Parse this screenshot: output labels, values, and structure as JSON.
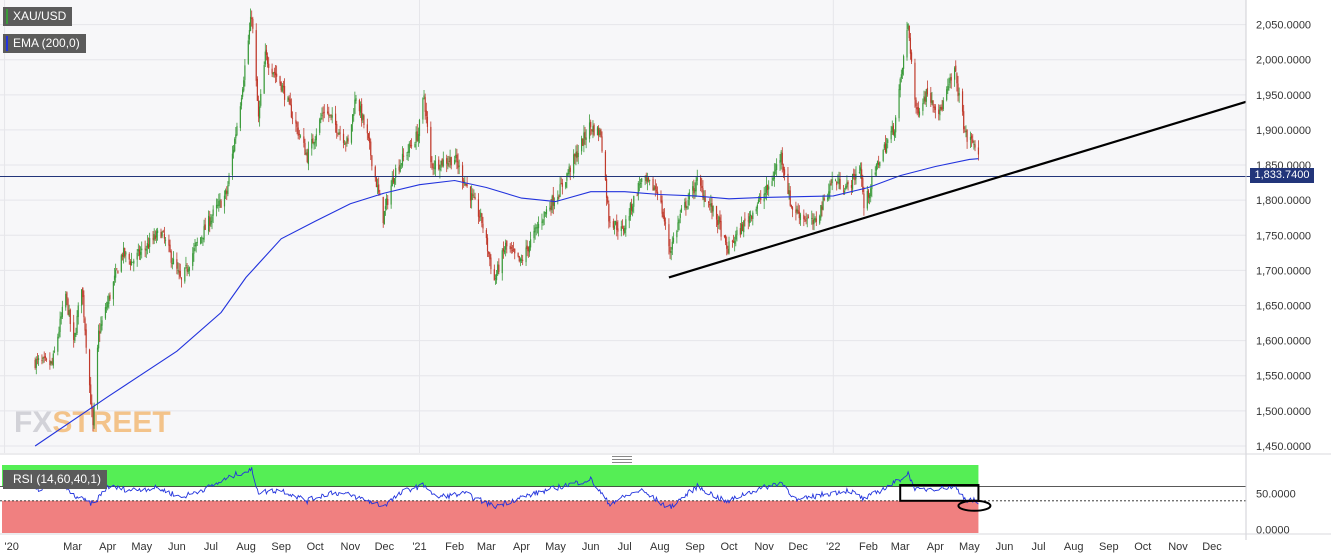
{
  "legend": {
    "symbol": "XAU/USD",
    "ema": "EMA (200,0)",
    "rsi": "RSI (14,60,40,1)"
  },
  "watermark": "FXSTREET",
  "price_tag": "1,833.7400",
  "colors": {
    "up": "#3a9a3a",
    "down": "#c0392b",
    "ema": "#2233dd",
    "trendline": "#000000",
    "rsi_line": "#2233dd",
    "rsi_high_zone": "#55ee55",
    "rsi_low_zone": "#f08080",
    "badge_bg": "#5b5b5b",
    "symbol_marker": "#3a9a3a",
    "ema_marker": "#2233dd"
  },
  "icons": {
    "resize_handle": "drag-handle-icon"
  },
  "chart_data": [
    {
      "type": "candlestick",
      "symbol": "XAU/USD",
      "timeframe_start": "2020-01-28",
      "timeframe_end": "2022-05-09",
      "ylim": [
        1440,
        2085
      ],
      "yticks": [
        1450,
        1500,
        1550,
        1600,
        1650,
        1700,
        1750,
        1800,
        1850,
        1900,
        1950,
        2000,
        2050
      ],
      "ytick_labels": [
        "1,450.0000",
        "1,500.0000",
        "1,550.0000",
        "1,600.0000",
        "1,650.0000",
        "1,700.0000",
        "1,750.0000",
        "1,800.0000",
        "1,850.0000",
        "1,900.0000",
        "1,950.0000",
        "2,000.0000",
        "2,050.0000"
      ],
      "xticks": [
        "'20",
        "Mar",
        "Apr",
        "May",
        "Jun",
        "Jul",
        "Aug",
        "Sep",
        "Oct",
        "Nov",
        "Dec",
        "'21",
        "Feb",
        "Mar",
        "Apr",
        "May",
        "Jun",
        "Jul",
        "Aug",
        "Sep",
        "Oct",
        "Nov",
        "Dec",
        "'22",
        "Feb",
        "Mar",
        "Apr",
        "May",
        "Jun",
        "Jul",
        "Aug",
        "Sep",
        "Oct",
        "Nov",
        "Dec"
      ],
      "xtick_dates": [
        "2020-01-01",
        "2020-03-01",
        "2020-04-01",
        "2020-05-01",
        "2020-06-01",
        "2020-07-01",
        "2020-08-01",
        "2020-09-01",
        "2020-10-01",
        "2020-11-01",
        "2020-12-01",
        "2021-01-01",
        "2021-02-01",
        "2021-03-01",
        "2021-04-01",
        "2021-05-01",
        "2021-06-01",
        "2021-07-01",
        "2021-08-01",
        "2021-09-01",
        "2021-10-01",
        "2021-11-01",
        "2021-12-01",
        "2022-01-01",
        "2022-02-01",
        "2022-03-01",
        "2022-04-01",
        "2022-05-01",
        "2022-06-01",
        "2022-07-01",
        "2022-08-01",
        "2022-09-01",
        "2022-10-01",
        "2022-11-01",
        "2022-12-01"
      ],
      "close_anchors": [
        [
          "2020-01-28",
          1570
        ],
        [
          "2020-02-12",
          1566
        ],
        [
          "2020-02-24",
          1665
        ],
        [
          "2020-03-02",
          1594
        ],
        [
          "2020-03-09",
          1680
        ],
        [
          "2020-03-19",
          1475
        ],
        [
          "2020-03-24",
          1610
        ],
        [
          "2020-04-14",
          1725
        ],
        [
          "2020-04-22",
          1712
        ],
        [
          "2020-05-18",
          1755
        ],
        [
          "2020-06-05",
          1683
        ],
        [
          "2020-06-15",
          1725
        ],
        [
          "2020-07-01",
          1775
        ],
        [
          "2020-07-15",
          1810
        ],
        [
          "2020-07-27",
          1940
        ],
        [
          "2020-08-06",
          2065
        ],
        [
          "2020-08-12",
          1915
        ],
        [
          "2020-08-18",
          2005
        ],
        [
          "2020-09-01",
          1965
        ],
        [
          "2020-09-24",
          1862
        ],
        [
          "2020-10-09",
          1930
        ],
        [
          "2020-10-30",
          1880
        ],
        [
          "2020-11-06",
          1950
        ],
        [
          "2020-11-16",
          1890
        ],
        [
          "2020-11-30",
          1775
        ],
        [
          "2020-12-10",
          1840
        ],
        [
          "2020-12-31",
          1895
        ],
        [
          "2021-01-05",
          1950
        ],
        [
          "2021-01-11",
          1850
        ],
        [
          "2021-02-01",
          1860
        ],
        [
          "2021-02-25",
          1770
        ],
        [
          "2021-03-08",
          1685
        ],
        [
          "2021-03-18",
          1735
        ],
        [
          "2021-03-31",
          1710
        ],
        [
          "2021-04-20",
          1778
        ],
        [
          "2021-05-05",
          1815
        ],
        [
          "2021-05-31",
          1905
        ],
        [
          "2021-06-10",
          1895
        ],
        [
          "2021-06-17",
          1775
        ],
        [
          "2021-06-29",
          1755
        ],
        [
          "2021-07-15",
          1828
        ],
        [
          "2021-07-30",
          1815
        ],
        [
          "2021-08-06",
          1762
        ],
        [
          "2021-08-10",
          1728
        ],
        [
          "2021-08-20",
          1782
        ],
        [
          "2021-09-03",
          1826
        ],
        [
          "2021-09-22",
          1768
        ],
        [
          "2021-09-29",
          1728
        ],
        [
          "2021-10-15",
          1768
        ],
        [
          "2021-11-05",
          1818
        ],
        [
          "2021-11-16",
          1865
        ],
        [
          "2021-11-25",
          1790
        ],
        [
          "2021-12-15",
          1765
        ],
        [
          "2021-12-31",
          1828
        ],
        [
          "2022-01-14",
          1818
        ],
        [
          "2022-01-25",
          1848
        ],
        [
          "2022-01-28",
          1790
        ],
        [
          "2022-02-11",
          1860
        ],
        [
          "2022-02-24",
          1905
        ],
        [
          "2022-03-08",
          2050
        ],
        [
          "2022-03-15",
          1925
        ],
        [
          "2022-03-25",
          1955
        ],
        [
          "2022-04-05",
          1925
        ],
        [
          "2022-04-18",
          1985
        ],
        [
          "2022-04-28",
          1890
        ],
        [
          "2022-05-06",
          1880
        ],
        [
          "2022-05-09",
          1858
        ]
      ],
      "ema_anchors": [
        [
          "2020-01-28",
          1450
        ],
        [
          "2020-04-01",
          1520
        ],
        [
          "2020-06-01",
          1585
        ],
        [
          "2020-07-10",
          1640
        ],
        [
          "2020-08-01",
          1690
        ],
        [
          "2020-09-01",
          1745
        ],
        [
          "2020-10-01",
          1770
        ],
        [
          "2020-11-01",
          1795
        ],
        [
          "2020-12-01",
          1810
        ],
        [
          "2021-01-01",
          1822
        ],
        [
          "2021-02-01",
          1828
        ],
        [
          "2021-03-01",
          1818
        ],
        [
          "2021-04-01",
          1803
        ],
        [
          "2021-05-01",
          1798
        ],
        [
          "2021-06-01",
          1812
        ],
        [
          "2021-07-01",
          1812
        ],
        [
          "2021-08-01",
          1808
        ],
        [
          "2021-09-01",
          1806
        ],
        [
          "2021-10-01",
          1802
        ],
        [
          "2021-11-01",
          1804
        ],
        [
          "2021-12-01",
          1805
        ],
        [
          "2022-01-01",
          1806
        ],
        [
          "2022-02-01",
          1818
        ],
        [
          "2022-03-01",
          1835
        ],
        [
          "2022-04-01",
          1848
        ],
        [
          "2022-05-01",
          1858
        ],
        [
          "2022-05-09",
          1859
        ]
      ],
      "price_line": 1833.74,
      "trendline": {
        "from": [
          "2021-08-09",
          1690
        ],
        "to": [
          "2022-12-31",
          1940
        ]
      }
    },
    {
      "type": "line",
      "indicator": "RSI (14,60,40,1)",
      "ylim": [
        -5,
        90
      ],
      "yticks": [
        0,
        50
      ],
      "ytick_labels": [
        "0.0000",
        "50.0000"
      ],
      "upper_band": 60,
      "lower_band": 40,
      "rsi_anchors": [
        [
          "2020-01-28",
          55
        ],
        [
          "2020-02-20",
          65
        ],
        [
          "2020-03-01",
          48
        ],
        [
          "2020-03-19",
          35
        ],
        [
          "2020-04-01",
          60
        ],
        [
          "2020-04-20",
          55
        ],
        [
          "2020-05-15",
          58
        ],
        [
          "2020-06-05",
          45
        ],
        [
          "2020-07-01",
          60
        ],
        [
          "2020-07-25",
          78
        ],
        [
          "2020-08-06",
          83
        ],
        [
          "2020-08-12",
          52
        ],
        [
          "2020-09-01",
          55
        ],
        [
          "2020-09-24",
          40
        ],
        [
          "2020-10-15",
          52
        ],
        [
          "2020-11-01",
          48
        ],
        [
          "2020-11-30",
          33
        ],
        [
          "2020-12-20",
          55
        ],
        [
          "2021-01-06",
          62
        ],
        [
          "2021-01-15",
          45
        ],
        [
          "2021-02-10",
          50
        ],
        [
          "2021-03-08",
          32
        ],
        [
          "2021-04-01",
          45
        ],
        [
          "2021-05-01",
          58
        ],
        [
          "2021-06-01",
          70
        ],
        [
          "2021-06-17",
          36
        ],
        [
          "2021-07-15",
          55
        ],
        [
          "2021-08-09",
          30
        ],
        [
          "2021-09-03",
          60
        ],
        [
          "2021-09-29",
          38
        ],
        [
          "2021-10-15",
          50
        ],
        [
          "2021-11-16",
          66
        ],
        [
          "2021-11-30",
          40
        ],
        [
          "2021-12-20",
          48
        ],
        [
          "2022-01-15",
          55
        ],
        [
          "2022-01-28",
          42
        ],
        [
          "2022-02-24",
          65
        ],
        [
          "2022-03-08",
          78
        ],
        [
          "2022-03-15",
          55
        ],
        [
          "2022-04-18",
          60
        ],
        [
          "2022-04-28",
          42
        ],
        [
          "2022-05-06",
          40
        ],
        [
          "2022-05-09",
          36
        ]
      ],
      "zones": {
        "high": [
          60,
          90
        ],
        "low": [
          -5,
          40
        ],
        "zone_end": "2022-05-09"
      },
      "box_highlight": {
        "from": "2022-03-01",
        "to": "2022-05-09",
        "range": [
          40,
          62
        ]
      },
      "ellipse_highlight": {
        "center": [
          "2022-05-09",
          33
        ]
      }
    }
  ]
}
